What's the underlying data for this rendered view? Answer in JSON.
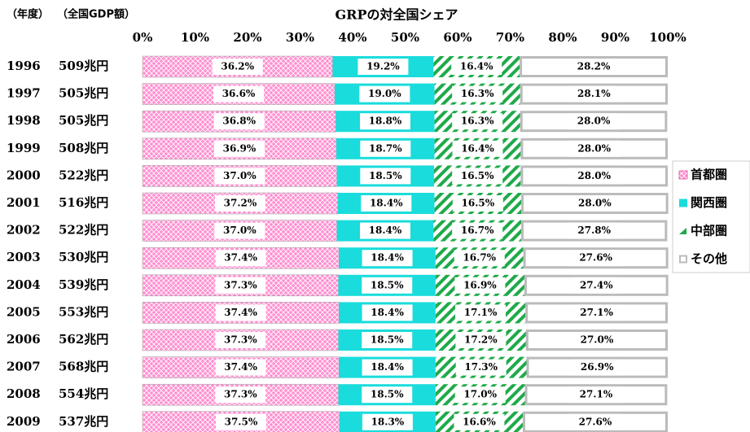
{
  "chart_data": {
    "type": "stacked_bar_horizontal",
    "title": "GRPの対全国シェア",
    "category_header": "（年度）",
    "gdp_header": "（全国GDP額）",
    "categories": [
      "1996",
      "1997",
      "1998",
      "1999",
      "2000",
      "2001",
      "2002",
      "2003",
      "2004",
      "2005",
      "2006",
      "2007",
      "2008",
      "2009"
    ],
    "gdp_labels": [
      "509兆円",
      "505兆円",
      "505兆円",
      "508兆円",
      "522兆円",
      "516兆円",
      "522兆円",
      "530兆円",
      "539兆円",
      "553兆円",
      "562兆円",
      "568兆円",
      "554兆円",
      "537兆円"
    ],
    "xlim": [
      0,
      100
    ],
    "xticks": [
      {
        "value": 0,
        "label": "0%"
      },
      {
        "value": 10,
        "label": "10%"
      },
      {
        "value": 20,
        "label": "20%"
      },
      {
        "value": 30,
        "label": "30%"
      },
      {
        "value": 40,
        "label": "40%"
      },
      {
        "value": 50,
        "label": "50%"
      },
      {
        "value": 60,
        "label": "60%"
      },
      {
        "value": 70,
        "label": "70%"
      },
      {
        "value": 80,
        "label": "80%"
      },
      {
        "value": 90,
        "label": "90%"
      },
      {
        "value": 100,
        "label": "100%"
      }
    ],
    "legend": "right",
    "series": [
      {
        "name": "首都圏",
        "color": "#ff8fd0",
        "pattern": "crosshatch",
        "values": [
          36.2,
          36.6,
          36.8,
          36.9,
          37.0,
          37.2,
          37.0,
          37.4,
          37.3,
          37.4,
          37.3,
          37.4,
          37.3,
          37.5
        ],
        "value_labels": [
          "36.2%",
          "36.6%",
          "36.8%",
          "36.9%",
          "37.0%",
          "37.2%",
          "37.0%",
          "37.4%",
          "37.3%",
          "37.4%",
          "37.3%",
          "37.4%",
          "37.3%",
          "37.5%"
        ]
      },
      {
        "name": "関西圏",
        "color": "#1adcdc",
        "pattern": "solid",
        "values": [
          19.2,
          19.0,
          18.8,
          18.7,
          18.5,
          18.4,
          18.4,
          18.4,
          18.5,
          18.4,
          18.5,
          18.4,
          18.5,
          18.3
        ],
        "value_labels": [
          "19.2%",
          "19.0%",
          "18.8%",
          "18.7%",
          "18.5%",
          "18.4%",
          "18.4%",
          "18.4%",
          "18.5%",
          "18.4%",
          "18.5%",
          "18.4%",
          "18.5%",
          "18.3%"
        ]
      },
      {
        "name": "中部圏",
        "color": "#1faa4a",
        "pattern": "diagonal",
        "values": [
          16.4,
          16.3,
          16.3,
          16.4,
          16.5,
          16.5,
          16.7,
          16.7,
          16.9,
          17.1,
          17.2,
          17.3,
          17.0,
          16.6
        ],
        "value_labels": [
          "16.4%",
          "16.3%",
          "16.3%",
          "16.4%",
          "16.5%",
          "16.5%",
          "16.7%",
          "16.7%",
          "16.9%",
          "17.1%",
          "17.2%",
          "17.3%",
          "17.0%",
          "16.6%"
        ]
      },
      {
        "name": "その他",
        "color": "#bbbbbb",
        "pattern": "outline",
        "values": [
          28.2,
          28.1,
          28.0,
          28.0,
          28.0,
          28.0,
          27.8,
          27.6,
          27.4,
          27.1,
          27.0,
          26.9,
          27.1,
          27.6
        ],
        "value_labels": [
          "28.2%",
          "28.1%",
          "28.0%",
          "28.0%",
          "28.0%",
          "28.0%",
          "27.8%",
          "27.6%",
          "27.4%",
          "27.1%",
          "27.0%",
          "26.9%",
          "27.1%",
          "27.6%"
        ]
      }
    ]
  }
}
